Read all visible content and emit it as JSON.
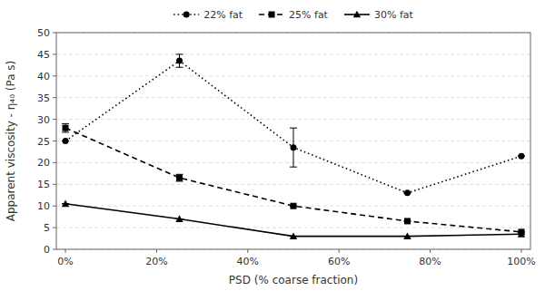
{
  "chart_data": {
    "type": "line",
    "x": [
      0,
      25,
      50,
      75,
      100
    ],
    "xlabel": "PSD (% coarse fraction)",
    "ylabel": "Apparent viscosity - η₄₀ (Pa s)",
    "xlim": [
      -2,
      102
    ],
    "xticks": [
      {
        "value": 0,
        "label": "0%"
      },
      {
        "value": 20,
        "label": "20%"
      },
      {
        "value": 40,
        "label": "40%"
      },
      {
        "value": 60,
        "label": "60%"
      },
      {
        "value": 80,
        "label": "80%"
      },
      {
        "value": 100,
        "label": "100%"
      }
    ],
    "ylim": [
      0,
      50
    ],
    "yticks": [
      0,
      5,
      10,
      15,
      20,
      25,
      30,
      35,
      40,
      45,
      50
    ],
    "grid": true,
    "legend": "top",
    "series": [
      {
        "name": "22% fat",
        "color": "#000000",
        "marker": "circle",
        "line_style": "dotted",
        "values": [
          25.0,
          43.5,
          23.5,
          13.0,
          21.5
        ],
        "yerr": [
          0.0,
          1.5,
          4.5,
          0.0,
          0.0
        ]
      },
      {
        "name": "25% fat",
        "color": "#000000",
        "marker": "square",
        "line_style": "dashed",
        "values": [
          28.0,
          16.5,
          10.0,
          6.5,
          4.0
        ],
        "yerr": [
          1.0,
          0.8,
          0.0,
          0.0,
          0.0
        ]
      },
      {
        "name": "30% fat",
        "color": "#000000",
        "marker": "triangle",
        "line_style": "solid",
        "values": [
          10.5,
          7.0,
          3.0,
          3.0,
          3.5
        ],
        "yerr": [
          0.0,
          0.0,
          0.0,
          0.0,
          0.0
        ]
      }
    ]
  }
}
